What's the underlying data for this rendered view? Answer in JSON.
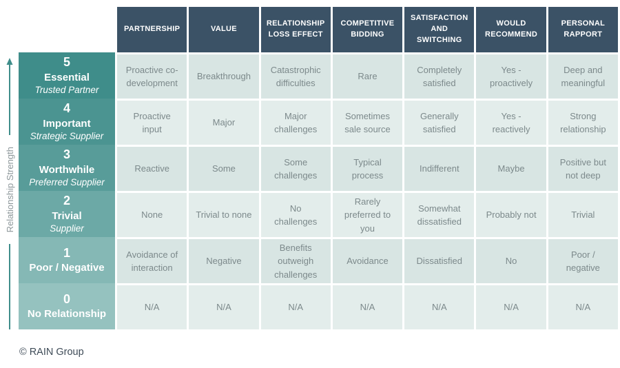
{
  "axis": {
    "label": "Relationship Strength"
  },
  "table": {
    "columns": [
      "PARTNERSHIP",
      "VALUE",
      "RELATIONSHIP LOSS EFFECT",
      "COMPETITIVE BIDDING",
      "SATISFACTION AND SWITCHING",
      "WOULD RECOMMEND",
      "PERSONAL RAPPORT"
    ],
    "rows": [
      {
        "level": "5",
        "name": "Essential",
        "subtitle": "Trusted Partner",
        "cells": [
          "Proactive co-development",
          "Breakthrough",
          "Catastrophic difficulties",
          "Rare",
          "Completely satisfied",
          "Yes - proactively",
          "Deep and meaningful"
        ]
      },
      {
        "level": "4",
        "name": "Important",
        "subtitle": "Strategic Supplier",
        "cells": [
          "Proactive input",
          "Major",
          "Major challenges",
          "Sometimes sale source",
          "Generally satisfied",
          "Yes - reactively",
          "Strong relationship"
        ]
      },
      {
        "level": "3",
        "name": "Worthwhile",
        "subtitle": "Preferred Supplier",
        "cells": [
          "Reactive",
          "Some",
          "Some challenges",
          "Typical process",
          "Indifferent",
          "Maybe",
          "Positive but not deep"
        ]
      },
      {
        "level": "2",
        "name": "Trivial",
        "subtitle": "Supplier",
        "cells": [
          "None",
          "Trivial to none",
          "No challenges",
          "Rarely preferred to you",
          "Somewhat dissatisfied",
          "Probably not",
          "Trivial"
        ]
      },
      {
        "level": "1",
        "name": "Poor / Negative",
        "subtitle": "",
        "cells": [
          "Avoidance of interaction",
          "Negative",
          "Benefits outweigh challenges",
          "Avoidance",
          "Dissatisfied",
          "No",
          "Poor / negative"
        ]
      },
      {
        "level": "0",
        "name": "No Relationship",
        "subtitle": "",
        "cells": [
          "N/A",
          "N/A",
          "N/A",
          "N/A",
          "N/A",
          "N/A",
          "N/A"
        ]
      }
    ]
  },
  "footer": {
    "copyright": "© RAIN Group"
  },
  "colors": {
    "header_bg": "#3b5266",
    "header_text": "#ffffff",
    "label_bgs": [
      "#3f8d8a",
      "#4b9491",
      "#589c99",
      "#6ca9a6",
      "#85b8b5",
      "#95c2bf"
    ],
    "label_text": "#ffffff",
    "cell_dark": "#d8e5e3",
    "cell_light": "#e3edeb",
    "cell_text": "#7c898b",
    "axis_color": "#3f8d8a",
    "axis_text_color": "#8d979a",
    "footer_text_color": "#3e4b57"
  }
}
